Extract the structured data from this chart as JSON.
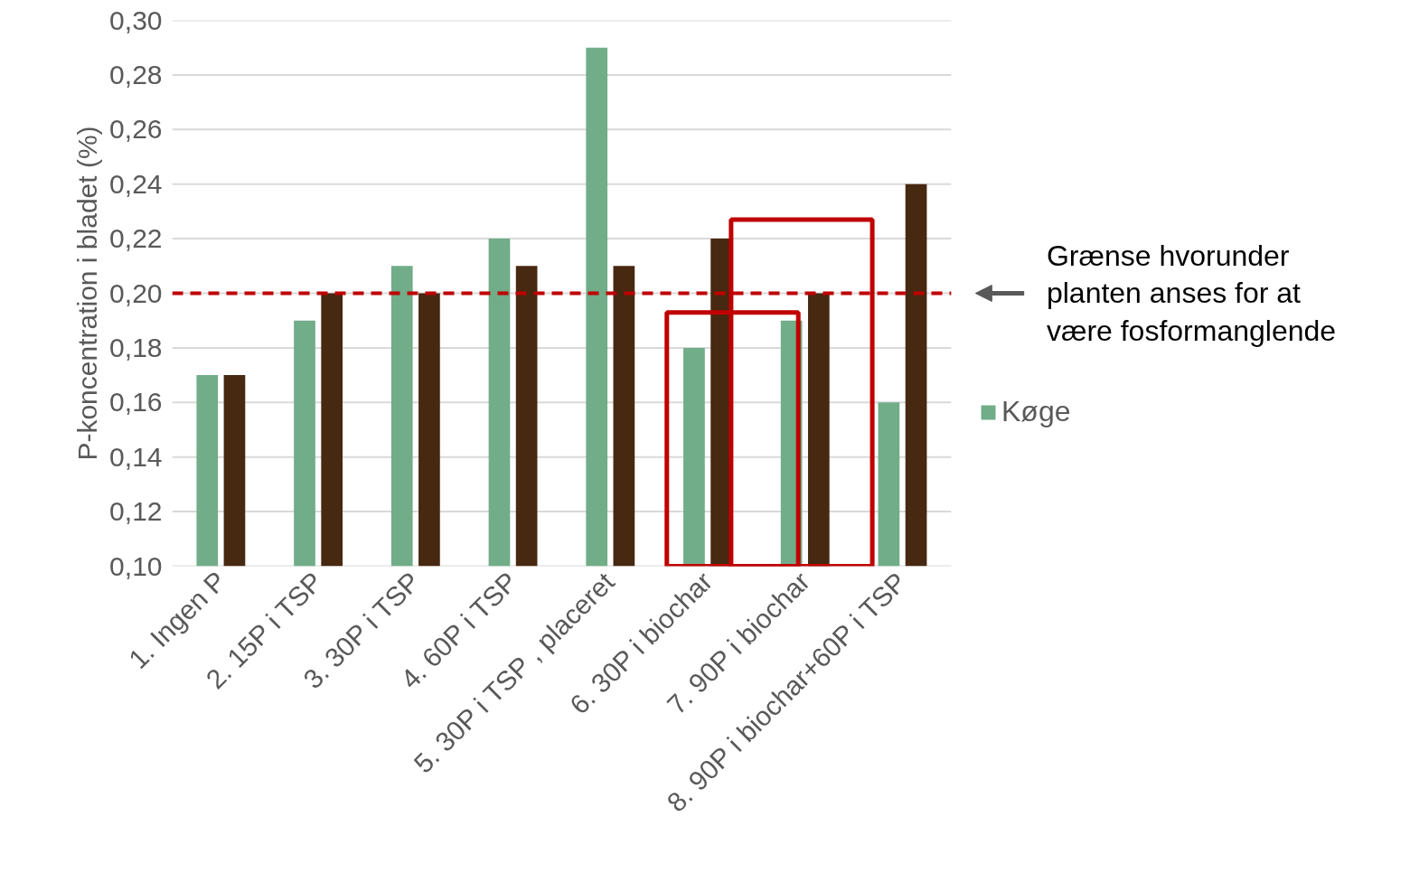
{
  "chart_data": {
    "type": "bar",
    "ylabel": "P-koncentration i bladet (%)",
    "categories": [
      "1. Ingen P",
      "2. 15P i TSP",
      "3. 30P i TSP",
      "4. 60P i TSP",
      "5. 30P i TSP , placeret",
      "6. 30P i biochar",
      "7. 90P i biochar",
      "8. 90P i biochar+60P i TSP"
    ],
    "series": [
      {
        "name": "Køge",
        "color": "#70ad88",
        "values": [
          0.17,
          0.19,
          0.21,
          0.22,
          0.29,
          0.18,
          0.19,
          0.16
        ]
      },
      {
        "color": "#472811",
        "values": [
          0.17,
          0.2,
          0.2,
          0.21,
          0.21,
          0.22,
          0.2,
          0.24
        ]
      }
    ],
    "ylim": [
      0.1,
      0.3
    ],
    "yticks": [
      {
        "value": 0.1,
        "label": "0,10"
      },
      {
        "value": 0.12,
        "label": "0,12"
      },
      {
        "value": 0.14,
        "label": "0,14"
      },
      {
        "value": 0.16,
        "label": "0,16"
      },
      {
        "value": 0.18,
        "label": "0,18"
      },
      {
        "value": 0.2,
        "label": "0,20"
      },
      {
        "value": 0.22,
        "label": "0,22"
      },
      {
        "value": 0.24,
        "label": "0,24"
      },
      {
        "value": 0.26,
        "label": "0,26"
      },
      {
        "value": 0.28,
        "label": "0,28"
      },
      {
        "value": 0.3,
        "label": "0,30"
      }
    ],
    "ref_lines": [
      {
        "axis": "y",
        "value": 0.2,
        "color": "#c00000",
        "line_style": "dashed"
      }
    ],
    "annotations": [
      "Grænse hvorunder planten anses for at være fosformanglende"
    ],
    "grid": "y",
    "legend": "right"
  }
}
